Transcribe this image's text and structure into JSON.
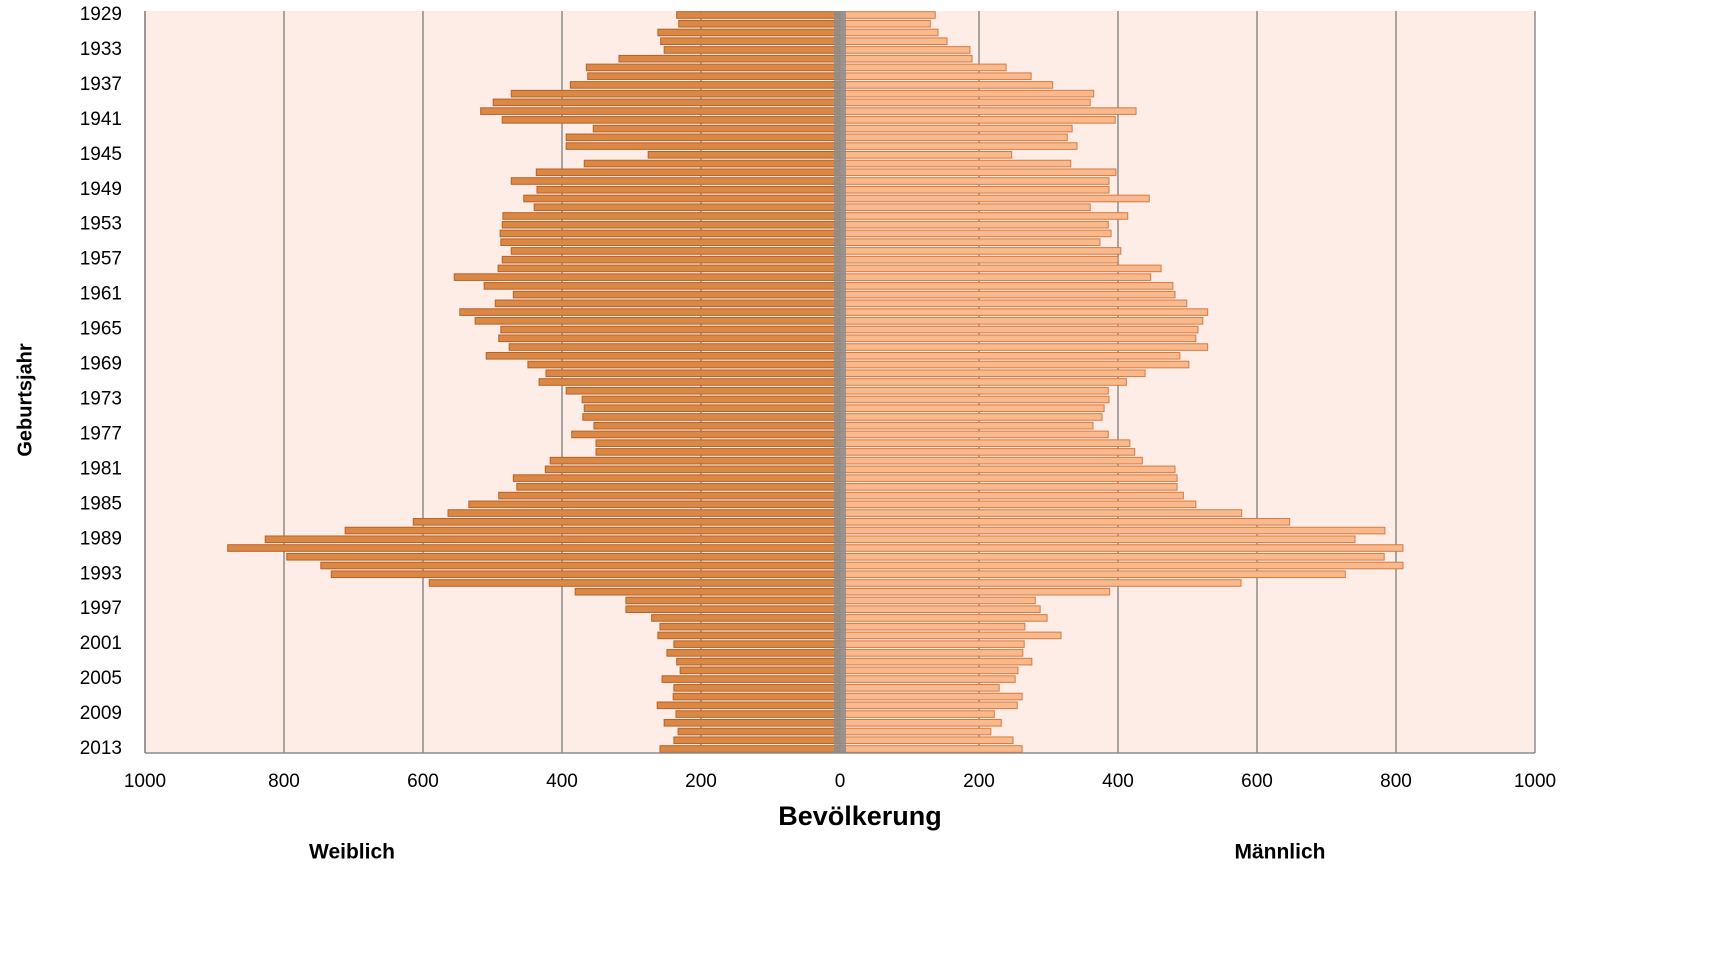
{
  "chart_data": {
    "type": "pyramid",
    "x_label": "Bevölkerung",
    "y_label": "Geburtsjahr",
    "categories": [
      "1929",
      null,
      null,
      null,
      "1933",
      null,
      null,
      null,
      "1937",
      null,
      null,
      null,
      "1941",
      null,
      null,
      null,
      "1945",
      null,
      null,
      null,
      "1949",
      null,
      null,
      null,
      "1953",
      null,
      null,
      null,
      "1957",
      null,
      null,
      null,
      "1961",
      null,
      null,
      null,
      "1965",
      null,
      null,
      null,
      "1969",
      null,
      null,
      null,
      "1973",
      null,
      null,
      null,
      "1977",
      null,
      null,
      null,
      "1981",
      null,
      null,
      null,
      "1985",
      null,
      null,
      null,
      "1989",
      null,
      null,
      null,
      "1993",
      null,
      null,
      null,
      "1997",
      null,
      null,
      null,
      "2001",
      null,
      null,
      null,
      "2005",
      null,
      null,
      null,
      "2009",
      null,
      null,
      null,
      "2013"
    ],
    "series": [
      {
        "name": "Weiblich",
        "side": "left",
        "color": "#dc8845",
        "stroke": "#b4612a",
        "values": [
          235,
          232,
          262,
          258,
          253,
          318,
          365,
          363,
          388,
          473,
          499,
          517,
          486,
          355,
          394,
          394,
          276,
          368,
          437,
          473,
          436,
          455,
          440,
          485,
          486,
          489,
          488,
          473,
          486,
          492,
          555,
          512,
          470,
          496,
          547,
          525,
          488,
          491,
          476,
          509,
          449,
          423,
          433,
          394,
          371,
          368,
          370,
          354,
          386,
          351,
          351,
          417,
          424,
          470,
          465,
          491,
          534,
          564,
          614,
          712,
          827,
          881,
          796,
          747,
          732,
          591,
          381,
          308,
          308,
          271,
          259,
          262,
          239,
          249,
          235,
          230,
          256,
          239,
          240,
          263,
          236,
          253,
          233,
          239,
          259
        ]
      },
      {
        "name": "Männlich",
        "side": "right",
        "color": "#fab98c",
        "stroke": "#d67a40",
        "values": [
          137,
          130,
          141,
          154,
          187,
          190,
          239,
          275,
          306,
          365,
          360,
          426,
          396,
          334,
          327,
          341,
          247,
          332,
          397,
          387,
          387,
          445,
          360,
          414,
          386,
          390,
          374,
          404,
          400,
          462,
          447,
          479,
          482,
          499,
          529,
          522,
          515,
          512,
          529,
          489,
          502,
          439,
          412,
          386,
          387,
          380,
          377,
          364,
          386,
          417,
          424,
          435,
          482,
          485,
          485,
          494,
          512,
          578,
          647,
          784,
          741,
          810,
          783,
          810,
          727,
          577,
          388,
          281,
          288,
          298,
          266,
          318,
          265,
          263,
          276,
          256,
          252,
          229,
          262,
          255,
          222,
          232,
          217,
          249,
          262
        ]
      }
    ],
    "xlim": [
      -1000,
      1000
    ],
    "xticks": [
      {
        "value": -1000,
        "label": "1000"
      },
      {
        "value": -800,
        "label": "800"
      },
      {
        "value": -600,
        "label": "600"
      },
      {
        "value": -400,
        "label": "400"
      },
      {
        "value": -200,
        "label": "200"
      },
      0,
      200,
      400,
      600,
      800,
      1000
    ],
    "grid": true,
    "background": "#fdede6"
  }
}
